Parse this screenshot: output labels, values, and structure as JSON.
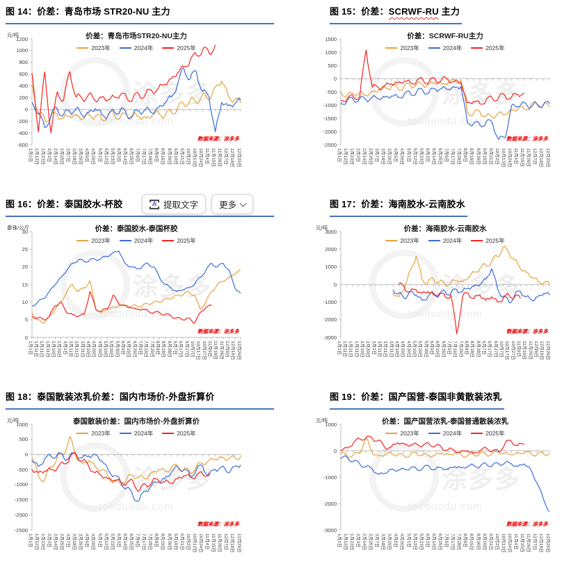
{
  "source_note": "数据来源：涂多多",
  "watermark": {
    "brand": "涂多多",
    "domain": "tooduodu.com"
  },
  "toolbar": {
    "extract_icon_glyph": "A",
    "extract_label": "提取文字",
    "more_label": "更多"
  },
  "legend": {
    "items": [
      {
        "label": "2023年",
        "color": "#E8A23C"
      },
      {
        "label": "2024年",
        "color": "#3A6BD8"
      },
      {
        "label": "2025年",
        "color": "#F7231F"
      }
    ]
  },
  "x_axis_sets": {
    "a": [
      "1月1日",
      "1月12日",
      "1月23日",
      "2月3日",
      "2月14日",
      "2月25日",
      "3月7日",
      "3月18日",
      "3月29日",
      "4月9日",
      "4月20日",
      "5月1日",
      "5月12日",
      "5月23日",
      "6月3日",
      "6月14日",
      "6月25日",
      "7月6日",
      "7月17日",
      "7月28日",
      "8月8日",
      "8月19日",
      "8月30日",
      "9月10日",
      "9月21日",
      "10月2日",
      "10月13日",
      "10月24日",
      "11月4日",
      "11月15日",
      "11月26日",
      "12月7日",
      "12月18日",
      "12月29日"
    ],
    "b": [
      "1月1日",
      "1月11日",
      "1月21日",
      "1月31日",
      "2月10日",
      "2月20日",
      "3月1日",
      "3月11日",
      "3月21日",
      "3月31日",
      "4月10日",
      "4月20日",
      "4月30日",
      "5月10日",
      "5月20日",
      "5月30日",
      "6月9日",
      "6月19日",
      "6月29日",
      "7月9日",
      "7月19日",
      "7月29日",
      "8月8日",
      "8月18日",
      "8月28日",
      "9月7日",
      "9月17日",
      "9月27日",
      "10月7日",
      "10月17日",
      "10月27日",
      "11月6日",
      "11月16日",
      "11月26日",
      "12月6日",
      "12月16日",
      "12月26日"
    ]
  },
  "chart_data": [
    {
      "type": "line",
      "figure_label": "图 14：价差：青岛市场 STR20-NU 主力",
      "title": "价差：青岛市场STR20-NU主力",
      "unit": "元/吨",
      "yticks": [
        1200,
        1000,
        800,
        600,
        400,
        200,
        0,
        -200,
        -400,
        -600
      ],
      "x_set": "a",
      "series": [
        {
          "name": "2023年",
          "values": [
            450,
            -80,
            -160,
            -120,
            -90,
            -150,
            -110,
            -100,
            -160,
            -90,
            -120,
            -160,
            -100,
            -80,
            -130,
            -100,
            -90,
            -130,
            -150,
            -100,
            -60,
            -110,
            -40,
            20,
            90,
            160,
            110,
            260,
            160,
            380,
            480,
            240,
            160,
            110
          ]
        },
        {
          "name": "2024年",
          "values": [
            120,
            -60,
            -310,
            -100,
            10,
            -90,
            -40,
            20,
            -110,
            -50,
            10,
            -80,
            -110,
            -40,
            0,
            -100,
            -90,
            -40,
            10,
            -60,
            30,
            110,
            210,
            420,
            700,
            520,
            640,
            300,
            210,
            -380,
            120,
            60,
            90,
            160
          ]
        },
        {
          "name": "2025年",
          "values": [
            620,
            -380,
            640,
            -400,
            300,
            160,
            640,
            210,
            170,
            260,
            150,
            210,
            160,
            210,
            260,
            190,
            200,
            240,
            270,
            310,
            360,
            430,
            520,
            620,
            720,
            830,
            930,
            1020,
            960,
            1100,
            null,
            null,
            null,
            null
          ]
        }
      ]
    },
    {
      "type": "line",
      "label_prefix": "图 15：价差：",
      "label_wavy": "SCRWF-RU",
      "label_suffix": " 主力",
      "title": "价差：SCRWF-RU主力",
      "unit": "",
      "yticks": [
        1500,
        1000,
        500,
        0,
        -500,
        -1000,
        -1500,
        -2000,
        -2500
      ],
      "x_set": "a",
      "series": [
        {
          "name": "2023年",
          "values": [
            -480,
            -650,
            -580,
            -540,
            -640,
            -500,
            -420,
            -340,
            -300,
            -360,
            -300,
            -260,
            -210,
            -260,
            -200,
            -160,
            -210,
            -150,
            -90,
            -60,
            -1250,
            -1320,
            -1260,
            -1420,
            -1460,
            -1300,
            -1360,
            -1210,
            -1120,
            -1160,
            -1020,
            -960,
            -1010,
            -1060
          ]
        },
        {
          "name": "2024年",
          "values": [
            -900,
            -840,
            -800,
            -760,
            -800,
            -700,
            -760,
            -700,
            -660,
            -700,
            -600,
            -560,
            -500,
            -460,
            -500,
            -400,
            -360,
            -400,
            -340,
            -300,
            -1650,
            -1700,
            -1760,
            -1640,
            -1700,
            -2300,
            -2240,
            -1020,
            -1060,
            -900,
            -1100,
            -950,
            -1000,
            -950
          ]
        },
        {
          "name": "2025年",
          "values": [
            -820,
            -760,
            -700,
            -660,
            1080,
            -320,
            -360,
            -260,
            -200,
            -160,
            -100,
            -160,
            -90,
            -60,
            -100,
            -60,
            -20,
            -60,
            -110,
            -160,
            -920,
            -860,
            -960,
            -800,
            -760,
            -700,
            -660,
            -700,
            -600,
            -560,
            null,
            null,
            null,
            null
          ]
        }
      ]
    },
    {
      "type": "line",
      "figure_label": "图 16：价差：泰国胶水-杯胶",
      "title": "价差：泰国胶水-泰国杯胶",
      "unit": "泰铢/公斤",
      "yticks": [
        30,
        25,
        20,
        15,
        10,
        5,
        0
      ],
      "x_set": "b",
      "series": [
        {
          "name": "2023年",
          "values": [
            7,
            5,
            4,
            6,
            8,
            10,
            13,
            15,
            13,
            14,
            16,
            8,
            7,
            8,
            8.5,
            9,
            9,
            8.5,
            9,
            9,
            9.5,
            10,
            10,
            11,
            11,
            12,
            12,
            13,
            12,
            8,
            10,
            13,
            15,
            16,
            17,
            18,
            19
          ]
        },
        {
          "name": "2024年",
          "values": [
            9,
            10,
            11,
            13,
            15,
            17,
            19,
            21,
            22,
            21.5,
            22,
            22,
            22.5,
            23,
            24,
            24.5,
            21,
            20,
            19.5,
            20,
            21,
            20,
            17,
            15,
            14,
            13,
            13.5,
            14,
            15,
            17,
            19,
            21,
            20,
            21,
            19,
            14,
            12.5
          ]
        },
        {
          "name": "2025年",
          "values": [
            6,
            5.5,
            5,
            6,
            9,
            10,
            7,
            6.5,
            6,
            6.5,
            13,
            8,
            7.5,
            8,
            12,
            9.5,
            9,
            8.5,
            8,
            8,
            7.5,
            7,
            7,
            6.5,
            6,
            5.5,
            5,
            5.5,
            4,
            7,
            8.5,
            9,
            null,
            null,
            null,
            null,
            null
          ]
        }
      ]
    },
    {
      "type": "line",
      "figure_label": "图 17：价差：海南胶水-云南胶水",
      "title": "价差：海南胶水-云南胶水",
      "unit": "元/吨",
      "yticks": [
        3000,
        2000,
        1000,
        0,
        -1000,
        -2000,
        -3000
      ],
      "x_set": "b",
      "series": [
        {
          "name": "2023年",
          "values": [
            null,
            null,
            null,
            null,
            null,
            null,
            null,
            null,
            null,
            -500,
            -700,
            -200,
            800,
            1600,
            300,
            100,
            300,
            150,
            0,
            100,
            250,
            150,
            400,
            700,
            900,
            1100,
            1300,
            1600,
            2100,
            1800,
            1400,
            900,
            700,
            400,
            200,
            100,
            0
          ]
        },
        {
          "name": "2024年",
          "values": [
            null,
            null,
            null,
            null,
            null,
            null,
            null,
            null,
            null,
            -300,
            -500,
            -800,
            -400,
            -600,
            -900,
            -700,
            -500,
            -600,
            -400,
            -500,
            -300,
            -400,
            -200,
            -100,
            0,
            300,
            900,
            -200,
            -700,
            -1000,
            -600,
            -400,
            -700,
            -900,
            -700,
            -500,
            -600
          ]
        },
        {
          "name": "2025年",
          "values": [
            null,
            null,
            null,
            null,
            null,
            null,
            null,
            null,
            null,
            null,
            0,
            -200,
            -400,
            -300,
            -500,
            -400,
            -600,
            -500,
            -700,
            -600,
            -2800,
            -700,
            -500,
            -800,
            -600,
            -900,
            -700,
            -1000,
            -800,
            -600,
            -700,
            -800,
            null,
            null,
            null,
            null,
            null
          ]
        }
      ]
    },
    {
      "type": "line",
      "figure_label": "图 18：泰国散装浓乳价差：国内市场价-外盘折算价",
      "title": "泰国散装价差：国内市场价-外盘折算价",
      "unit": "元/吨",
      "yticks": [
        1000,
        500,
        0,
        -500,
        -1000,
        -1500,
        -2000,
        -2500
      ],
      "x_set": "a",
      "series": [
        {
          "name": "2023年",
          "values": [
            -100,
            -700,
            -850,
            -400,
            -100,
            0,
            600,
            -100,
            -300,
            -200,
            -400,
            -500,
            -700,
            -900,
            -1000,
            -800,
            -700,
            -750,
            -800,
            -600,
            -500,
            -550,
            -450,
            -400,
            -500,
            -600,
            -400,
            -300,
            -200,
            -150,
            -100,
            -150,
            -100,
            -60
          ]
        },
        {
          "name": "2024年",
          "values": [
            -200,
            -400,
            -150,
            -60,
            0,
            -100,
            -60,
            0,
            -100,
            -60,
            0,
            -200,
            -500,
            -700,
            -900,
            -1100,
            -1400,
            -1500,
            -1200,
            -1000,
            -900,
            -800,
            -600,
            -400,
            -500,
            -700,
            -500,
            -400,
            -700,
            -500,
            -400,
            -600,
            -400,
            -350
          ]
        },
        {
          "name": "2025年",
          "values": [
            -500,
            -600,
            -550,
            -500,
            -450,
            -300,
            -100,
            0,
            -200,
            -400,
            -600,
            -700,
            -800,
            -850,
            -900,
            -950,
            -900,
            -1200,
            -1000,
            -900,
            -850,
            -900,
            -950,
            -800,
            -700,
            -750,
            -700,
            -650,
            -600,
            null,
            null,
            null,
            null,
            null
          ]
        }
      ]
    },
    {
      "type": "line",
      "figure_label": "图 19：价差：国产国营-泰国非黄散装浓乳",
      "title": "价差：国产国营浓乳-泰国普通散装浓乳",
      "unit": "元/吨",
      "yticks": [
        1000,
        0,
        -1000,
        -2000,
        -3000
      ],
      "x_set": "a",
      "series": [
        {
          "name": "2023年",
          "values": [
            -100,
            -200,
            -150,
            -100,
            500,
            -100,
            -200,
            -150,
            -100,
            -150,
            -200,
            -150,
            -100,
            -150,
            -200,
            -150,
            -100,
            -150,
            -100,
            -150,
            -200,
            -150,
            -100,
            -150,
            -100,
            -60,
            -100,
            -150,
            -100,
            -60,
            -100,
            -150,
            -100,
            -100
          ]
        },
        {
          "name": "2024年",
          "values": [
            -300,
            -250,
            -400,
            -500,
            -600,
            -700,
            -900,
            -850,
            -700,
            -750,
            -700,
            -650,
            -700,
            -650,
            -600,
            -700,
            -650,
            -700,
            -600,
            -650,
            -600,
            -550,
            -600,
            -500,
            -550,
            -500,
            -450,
            -500,
            -600,
            -500,
            -700,
            -1200,
            -1800,
            -2300
          ]
        },
        {
          "name": "2025年",
          "values": [
            0,
            100,
            300,
            450,
            500,
            450,
            400,
            100,
            150,
            300,
            250,
            200,
            250,
            200,
            250,
            200,
            100,
            50,
            0,
            -50,
            0,
            -100,
            0,
            100,
            0,
            -50,
            300,
            350,
            200,
            250,
            null,
            null,
            null,
            null
          ]
        }
      ]
    }
  ]
}
